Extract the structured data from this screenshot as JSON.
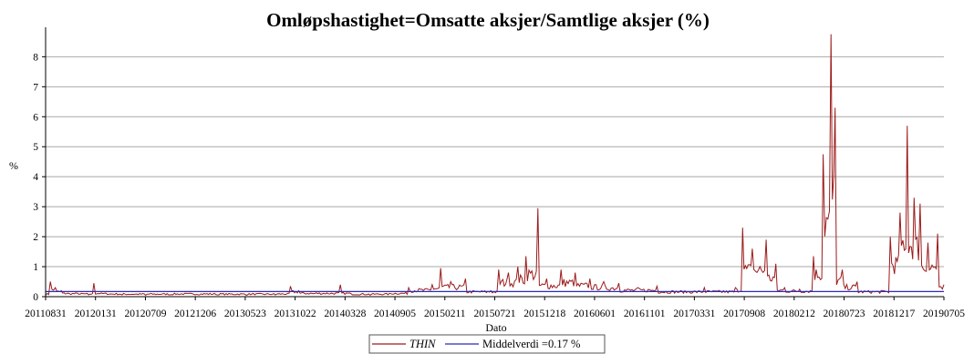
{
  "chart_data": {
    "type": "line",
    "title": "Omløpshastighet=Omsatte aksjer/Samtlige aksjer (%)",
    "xlabel": "Dato",
    "ylabel": "%",
    "ylim": [
      0,
      8.8
    ],
    "yticks": [
      "0",
      "1",
      "2",
      "3",
      "4",
      "5",
      "6",
      "7",
      "8"
    ],
    "x_range": [
      "20110831",
      "20190705"
    ],
    "xticks": [
      "20110831",
      "20120131",
      "20120709",
      "20121206",
      "20130523",
      "20131022",
      "20140328",
      "20140905",
      "20150211",
      "20150721",
      "20151218",
      "20160601",
      "20161101",
      "20170331",
      "20170908",
      "20180212",
      "20180723",
      "20181217",
      "20190705"
    ],
    "grid": true,
    "legend_position": "bottom",
    "colors": {
      "series": "#9b1b1b",
      "mean": "#2b2bb8",
      "grid": "#a8a8a8"
    },
    "series": [
      {
        "name": "THIN",
        "note_values": "approximate daily turnover (%), read from the plot",
        "points": [
          [
            "2011-08-31",
            0.05
          ],
          [
            "2011-09-15",
            0.5
          ],
          [
            "2011-10-01",
            0.3
          ],
          [
            "2011-10-20",
            0.2
          ],
          [
            "2011-11-15",
            0.1
          ],
          [
            "2011-12-15",
            0.08
          ],
          [
            "2012-01-15",
            0.06
          ],
          [
            "2012-02-01",
            0.45
          ],
          [
            "2012-02-20",
            0.1
          ],
          [
            "2012-03-20",
            0.08
          ],
          [
            "2012-05-01",
            0.06
          ],
          [
            "2012-07-15",
            0.05
          ],
          [
            "2012-10-01",
            0.06
          ],
          [
            "2012-12-15",
            0.08
          ],
          [
            "2013-03-01",
            0.06
          ],
          [
            "2013-06-01",
            0.05
          ],
          [
            "2013-09-01",
            0.06
          ],
          [
            "2013-10-20",
            0.35
          ],
          [
            "2013-11-15",
            0.2
          ],
          [
            "2014-01-01",
            0.1
          ],
          [
            "2014-03-28",
            0.4
          ],
          [
            "2014-05-01",
            0.1
          ],
          [
            "2014-07-01",
            0.05
          ],
          [
            "2014-09-05",
            0.1
          ],
          [
            "2014-11-01",
            0.3
          ],
          [
            "2015-01-15",
            0.4
          ],
          [
            "2015-02-11",
            0.95
          ],
          [
            "2015-03-15",
            0.5
          ],
          [
            "2015-05-01",
            0.6
          ],
          [
            "2015-07-21",
            0.2
          ],
          [
            "2015-08-15",
            0.9
          ],
          [
            "2015-09-15",
            0.8
          ],
          [
            "2015-10-15",
            1.0
          ],
          [
            "2015-11-10",
            1.35
          ],
          [
            "2015-12-18",
            2.95
          ],
          [
            "2016-01-15",
            0.6
          ],
          [
            "2016-03-01",
            0.9
          ],
          [
            "2016-04-15",
            0.8
          ],
          [
            "2016-06-01",
            0.6
          ],
          [
            "2016-07-15",
            0.5
          ],
          [
            "2016-09-01",
            0.45
          ],
          [
            "2016-11-01",
            0.3
          ],
          [
            "2017-01-01",
            0.35
          ],
          [
            "2017-03-31",
            0.2
          ],
          [
            "2017-06-01",
            0.3
          ],
          [
            "2017-08-01",
            0.2
          ],
          [
            "2017-09-08",
            0.3
          ],
          [
            "2017-10-01",
            2.3
          ],
          [
            "2017-11-01",
            1.6
          ],
          [
            "2017-12-15",
            1.9
          ],
          [
            "2018-01-15",
            1.1
          ],
          [
            "2018-02-12",
            0.3
          ],
          [
            "2018-04-01",
            0.25
          ],
          [
            "2018-05-15",
            1.35
          ],
          [
            "2018-06-15",
            4.75
          ],
          [
            "2018-07-10",
            8.75
          ],
          [
            "2018-07-23",
            6.3
          ],
          [
            "2018-08-15",
            0.9
          ],
          [
            "2018-10-01",
            0.5
          ],
          [
            "2018-12-17",
            0.2
          ],
          [
            "2019-01-15",
            2.0
          ],
          [
            "2019-02-15",
            2.8
          ],
          [
            "2019-03-10",
            5.7
          ],
          [
            "2019-04-01",
            3.3
          ],
          [
            "2019-04-20",
            3.1
          ],
          [
            "2019-05-15",
            1.8
          ],
          [
            "2019-06-15",
            2.1
          ],
          [
            "2019-07-05",
            0.4
          ]
        ]
      },
      {
        "name": "Middelverdi",
        "constant": 0.17
      }
    ],
    "legend": {
      "series_label": "THIN",
      "mean_label": "Middelverdi =0.17 %"
    }
  }
}
